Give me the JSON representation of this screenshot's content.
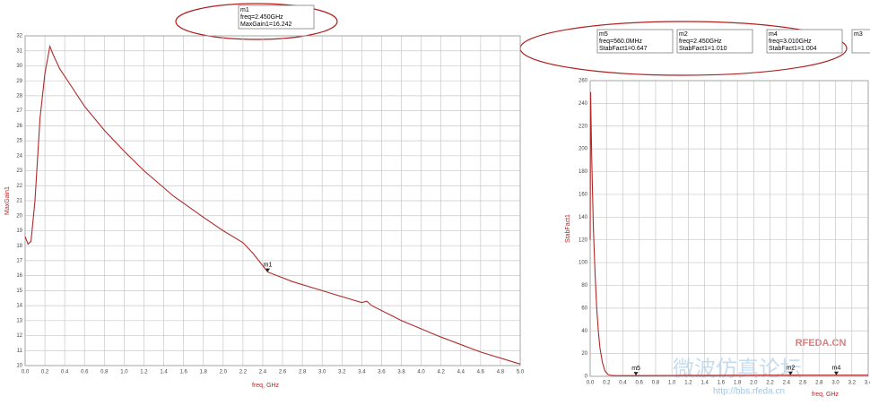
{
  "chart_data": [
    {
      "type": "line",
      "xlabel": "freq, GHz",
      "ylabel": "MaxGain1",
      "xlim": [
        0,
        5
      ],
      "ylim": [
        10,
        32
      ],
      "xticks": [
        {
          "value": 0,
          "label": "0.0"
        },
        0.2,
        0.4,
        0.6,
        0.8,
        {
          "value": 1,
          "label": "1.0"
        },
        1.2,
        1.4,
        1.6,
        1.8,
        {
          "value": 2,
          "label": "2.0"
        },
        2.2,
        2.4,
        2.6,
        2.8,
        {
          "value": 3,
          "label": "3.0"
        },
        3.2,
        3.4,
        3.6,
        3.8,
        {
          "value": 4,
          "label": "4.0"
        },
        4.2,
        4.4,
        4.6,
        4.8,
        {
          "value": 5,
          "label": "5.0"
        }
      ],
      "yticks": [
        10,
        11,
        12,
        13,
        14,
        15,
        16,
        17,
        18,
        19,
        20,
        21,
        22,
        23,
        24,
        25,
        26,
        27,
        28,
        29,
        30,
        31,
        32
      ],
      "grid": true,
      "series": [
        {
          "name": "MaxGain1",
          "color": "#b02828",
          "x": [
            0,
            0.03,
            0.06,
            0.1,
            0.15,
            0.2,
            0.25,
            0.28,
            0.35,
            0.45,
            0.6,
            0.8,
            1.0,
            1.2,
            1.5,
            1.8,
            2.0,
            2.2,
            2.3,
            2.45,
            2.7,
            3.0,
            3.3,
            3.4,
            3.45,
            3.5,
            3.8,
            4.2,
            4.6,
            5.0
          ],
          "values": [
            18.6,
            18.1,
            18.3,
            21,
            26.5,
            29.5,
            31.3,
            30.8,
            29.8,
            28.8,
            27.3,
            25.7,
            24.3,
            23.0,
            21.3,
            19.9,
            19.0,
            18.2,
            17.5,
            16.24,
            15.6,
            15.0,
            14.4,
            14.2,
            14.3,
            14.0,
            13.0,
            11.9,
            10.9,
            10.1
          ]
        }
      ],
      "markers": [
        {
          "name": "m1",
          "x": 2.45,
          "y": 16.242,
          "lines": [
            "freq=2.450GHz",
            "MaxGain1=16.242"
          ]
        }
      ]
    },
    {
      "type": "line",
      "xlabel": "freq, GHz",
      "ylabel": "StabFact1",
      "xlim": [
        0,
        3.4
      ],
      "ylim": [
        0,
        260
      ],
      "xticks": [
        {
          "value": 0,
          "label": "0.0"
        },
        0.2,
        0.4,
        0.6,
        0.8,
        {
          "value": 1,
          "label": "1.0"
        },
        1.2,
        1.4,
        1.6,
        1.8,
        {
          "value": 2,
          "label": "2.0"
        },
        2.2,
        2.4,
        2.6,
        2.8,
        {
          "value": 3,
          "label": "3.0"
        },
        3.2,
        3.4
      ],
      "yticks": [
        0,
        20,
        40,
        60,
        80,
        100,
        120,
        140,
        160,
        180,
        200,
        220,
        240,
        260
      ],
      "grid": true,
      "series": [
        {
          "name": "StabFact1",
          "color": "#b02828",
          "x": [
            0,
            0.005,
            0.01,
            0.02,
            0.04,
            0.06,
            0.08,
            0.1,
            0.12,
            0.15,
            0.18,
            0.22,
            0.26,
            0.3,
            0.56,
            1,
            1.5,
            2,
            2.45,
            3.01,
            3.4
          ],
          "values": [
            120,
            250,
            230,
            190,
            130,
            90,
            60,
            40,
            25,
            12,
            5,
            1.5,
            0.8,
            0.7,
            0.647,
            0.8,
            0.9,
            1.0,
            1.01,
            1.004,
            1.0
          ]
        }
      ],
      "markers": [
        {
          "name": "m5",
          "x": 0.56,
          "y": 0.647,
          "lines": [
            "freq=560.0MHz",
            "StabFact1=0.647"
          ]
        },
        {
          "name": "m2",
          "x": 2.45,
          "y": 1.01,
          "lines": [
            "freq=2.450GHz",
            "StabFact1=1.010"
          ]
        },
        {
          "name": "m4",
          "x": 3.01,
          "y": 1.004,
          "lines": [
            "freq=3.010GHz",
            "StabFact1=1.004"
          ]
        },
        {
          "name": "m3"
        }
      ]
    }
  ],
  "watermark": {
    "site": "RFEDA.CN",
    "url": "http://bbs.rfeda.cn",
    "title": "微波仿真论坛"
  }
}
